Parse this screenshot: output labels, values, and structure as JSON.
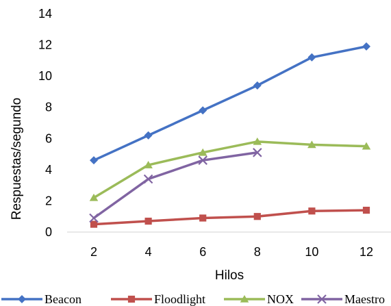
{
  "chart_data": {
    "type": "line",
    "title": "",
    "xlabel": "Hilos",
    "ylabel": "Respuestas/segundo",
    "x": [
      2,
      4,
      6,
      8,
      10,
      12
    ],
    "xticks": [
      "2",
      "4",
      "6",
      "8",
      "10",
      "12"
    ],
    "ylim": [
      0,
      14
    ],
    "yticks": [
      "0",
      "2",
      "4",
      "6",
      "8",
      "10",
      "12",
      "14"
    ],
    "grid": false,
    "legend_position": "bottom",
    "series": [
      {
        "name": "Beacon",
        "color": "#4472c4",
        "marker": "diamond",
        "values": [
          4.6,
          6.2,
          7.8,
          9.4,
          11.2,
          11.9
        ]
      },
      {
        "name": "Floodlight",
        "color": "#c0504d",
        "marker": "square",
        "values": [
          0.5,
          0.7,
          0.9,
          1.0,
          1.35,
          1.4
        ]
      },
      {
        "name": "NOX",
        "color": "#9bbb59",
        "marker": "triangle",
        "values": [
          2.2,
          4.3,
          5.1,
          5.8,
          5.6,
          5.5
        ]
      },
      {
        "name": "Maestro",
        "color": "#8064a2",
        "marker": "x",
        "values": [
          0.9,
          3.4,
          4.6,
          5.1,
          null,
          null
        ]
      }
    ]
  }
}
